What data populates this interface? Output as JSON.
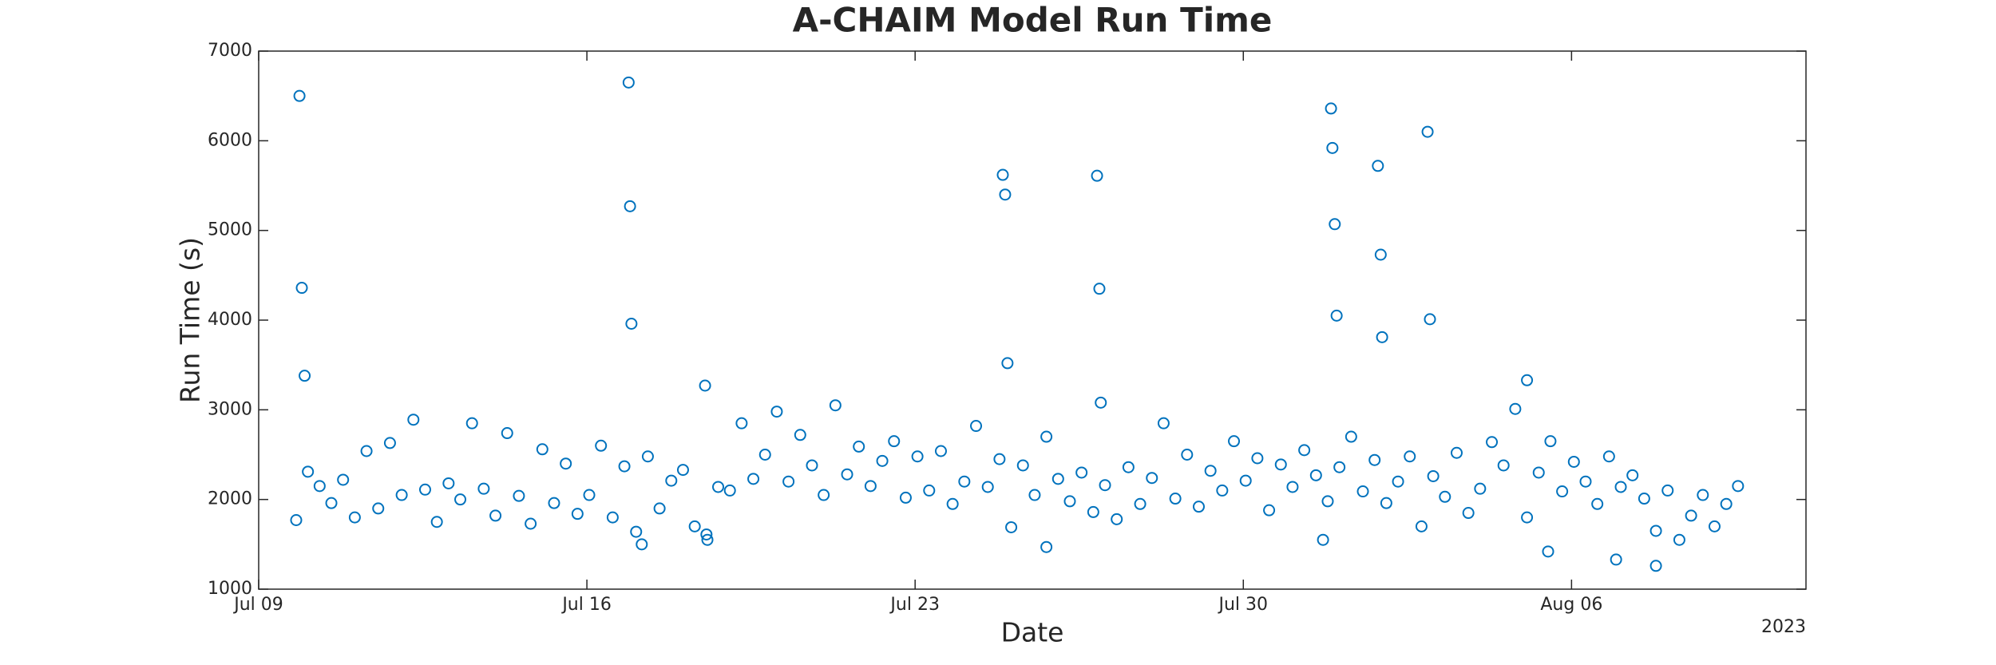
{
  "chart_data": {
    "type": "scatter",
    "title": "A-CHAIM Model Run Time",
    "xlabel": "Date",
    "ylabel": "Run Time (s)",
    "x_offset_label": "2023",
    "color": "#0072bd",
    "grid": false,
    "xlim": [
      0,
      33
    ],
    "xticks": [
      {
        "value": 0,
        "label": "Jul 09"
      },
      {
        "value": 7,
        "label": "Jul 16"
      },
      {
        "value": 14,
        "label": "Jul 23"
      },
      {
        "value": 21,
        "label": "Jul 30"
      },
      {
        "value": 28,
        "label": "Aug 06"
      }
    ],
    "ylim": [
      1000,
      7000
    ],
    "yticks": [
      1000,
      2000,
      3000,
      4000,
      5000,
      6000,
      7000
    ],
    "x": [
      0.8,
      1.05,
      1.3,
      1.55,
      1.8,
      2.05,
      2.3,
      2.55,
      2.8,
      3.05,
      3.3,
      3.55,
      3.8,
      4.05,
      4.3,
      4.55,
      4.8,
      5.05,
      5.3,
      5.55,
      5.8,
      6.05,
      6.3,
      6.55,
      6.8,
      7.05,
      7.3,
      7.55,
      7.8,
      8.05,
      8.3,
      8.55,
      8.8,
      9.05,
      9.3,
      9.55,
      9.8,
      10.05,
      10.3,
      10.55,
      10.8,
      11.05,
      11.3,
      11.55,
      11.8,
      12.05,
      12.3,
      12.55,
      12.8,
      13.05,
      13.3,
      13.55,
      13.8,
      14.05,
      14.3,
      14.55,
      14.8,
      15.05,
      15.3,
      15.55,
      15.8,
      16.05,
      16.3,
      16.55,
      16.8,
      17.05,
      17.3,
      17.55,
      17.8,
      18.05,
      18.3,
      18.55,
      18.8,
      19.05,
      19.3,
      19.55,
      19.8,
      20.05,
      20.3,
      20.55,
      20.8,
      21.05,
      21.3,
      21.55,
      21.8,
      22.05,
      22.3,
      22.55,
      22.8,
      23.05,
      23.3,
      23.55,
      23.8,
      24.05,
      24.3,
      24.55,
      24.8,
      25.05,
      25.3,
      25.55,
      25.8,
      26.05,
      26.3,
      26.55,
      26.8,
      27.05,
      27.3,
      27.55,
      27.8,
      28.05,
      28.3,
      28.55,
      28.8,
      29.05,
      29.3,
      29.55,
      29.8,
      30.05,
      30.3,
      30.55,
      30.8,
      31.05,
      31.3,
      31.55,
      0.87,
      0.92,
      0.98,
      7.89,
      7.92,
      7.95,
      9.52,
      15.87,
      15.92,
      15.97,
      17.88,
      17.93,
      17.96,
      22.87,
      22.9,
      22.95,
      22.99,
      23.87,
      23.93,
      23.96,
      24.93,
      24.98,
      8.17,
      9.57,
      16.8,
      22.7,
      27.5,
      28.95,
      29.8,
      27.05
    ],
    "values": [
      1770,
      2310,
      2150,
      1960,
      2220,
      1800,
      2540,
      1900,
      2630,
      2050,
      2890,
      2110,
      1750,
      2180,
      2000,
      2850,
      2120,
      1820,
      2740,
      2040,
      1730,
      2560,
      1960,
      2400,
      1840,
      2050,
      2600,
      1800,
      2370,
      1640,
      2480,
      1900,
      2210,
      2330,
      1700,
      1610,
      2140,
      2100,
      2850,
      2230,
      2500,
      2980,
      2200,
      2720,
      2380,
      2050,
      3050,
      2280,
      2590,
      2150,
      2430,
      2650,
      2020,
      2480,
      2100,
      2540,
      1950,
      2200,
      2820,
      2140,
      2450,
      1690,
      2380,
      2050,
      2700,
      2230,
      1980,
      2300,
      1860,
      2160,
      1780,
      2360,
      1950,
      2240,
      2850,
      2010,
      2500,
      1920,
      2320,
      2100,
      2650,
      2210,
      2460,
      1880,
      2390,
      2140,
      2550,
      2270,
      1980,
      2360,
      2700,
      2090,
      2440,
      1960,
      2200,
      2480,
      1700,
      2260,
      2030,
      2520,
      1850,
      2120,
      2640,
      2380,
      3010,
      1800,
      2300,
      2650,
      2090,
      2420,
      2200,
      1950,
      2480,
      2140,
      2270,
      2010,
      1650,
      2100,
      1550,
      1820,
      2050,
      1700,
      1950,
      2150,
      6500,
      4360,
      3380,
      6650,
      5270,
      3960,
      3270,
      5620,
      5400,
      3520,
      5610,
      4350,
      3080,
      6360,
      5920,
      5070,
      4050,
      5720,
      4730,
      3810,
      6100,
      4010,
      1500,
      1550,
      1470,
      1550,
      1420,
      1330,
      1260,
      3330
    ]
  }
}
